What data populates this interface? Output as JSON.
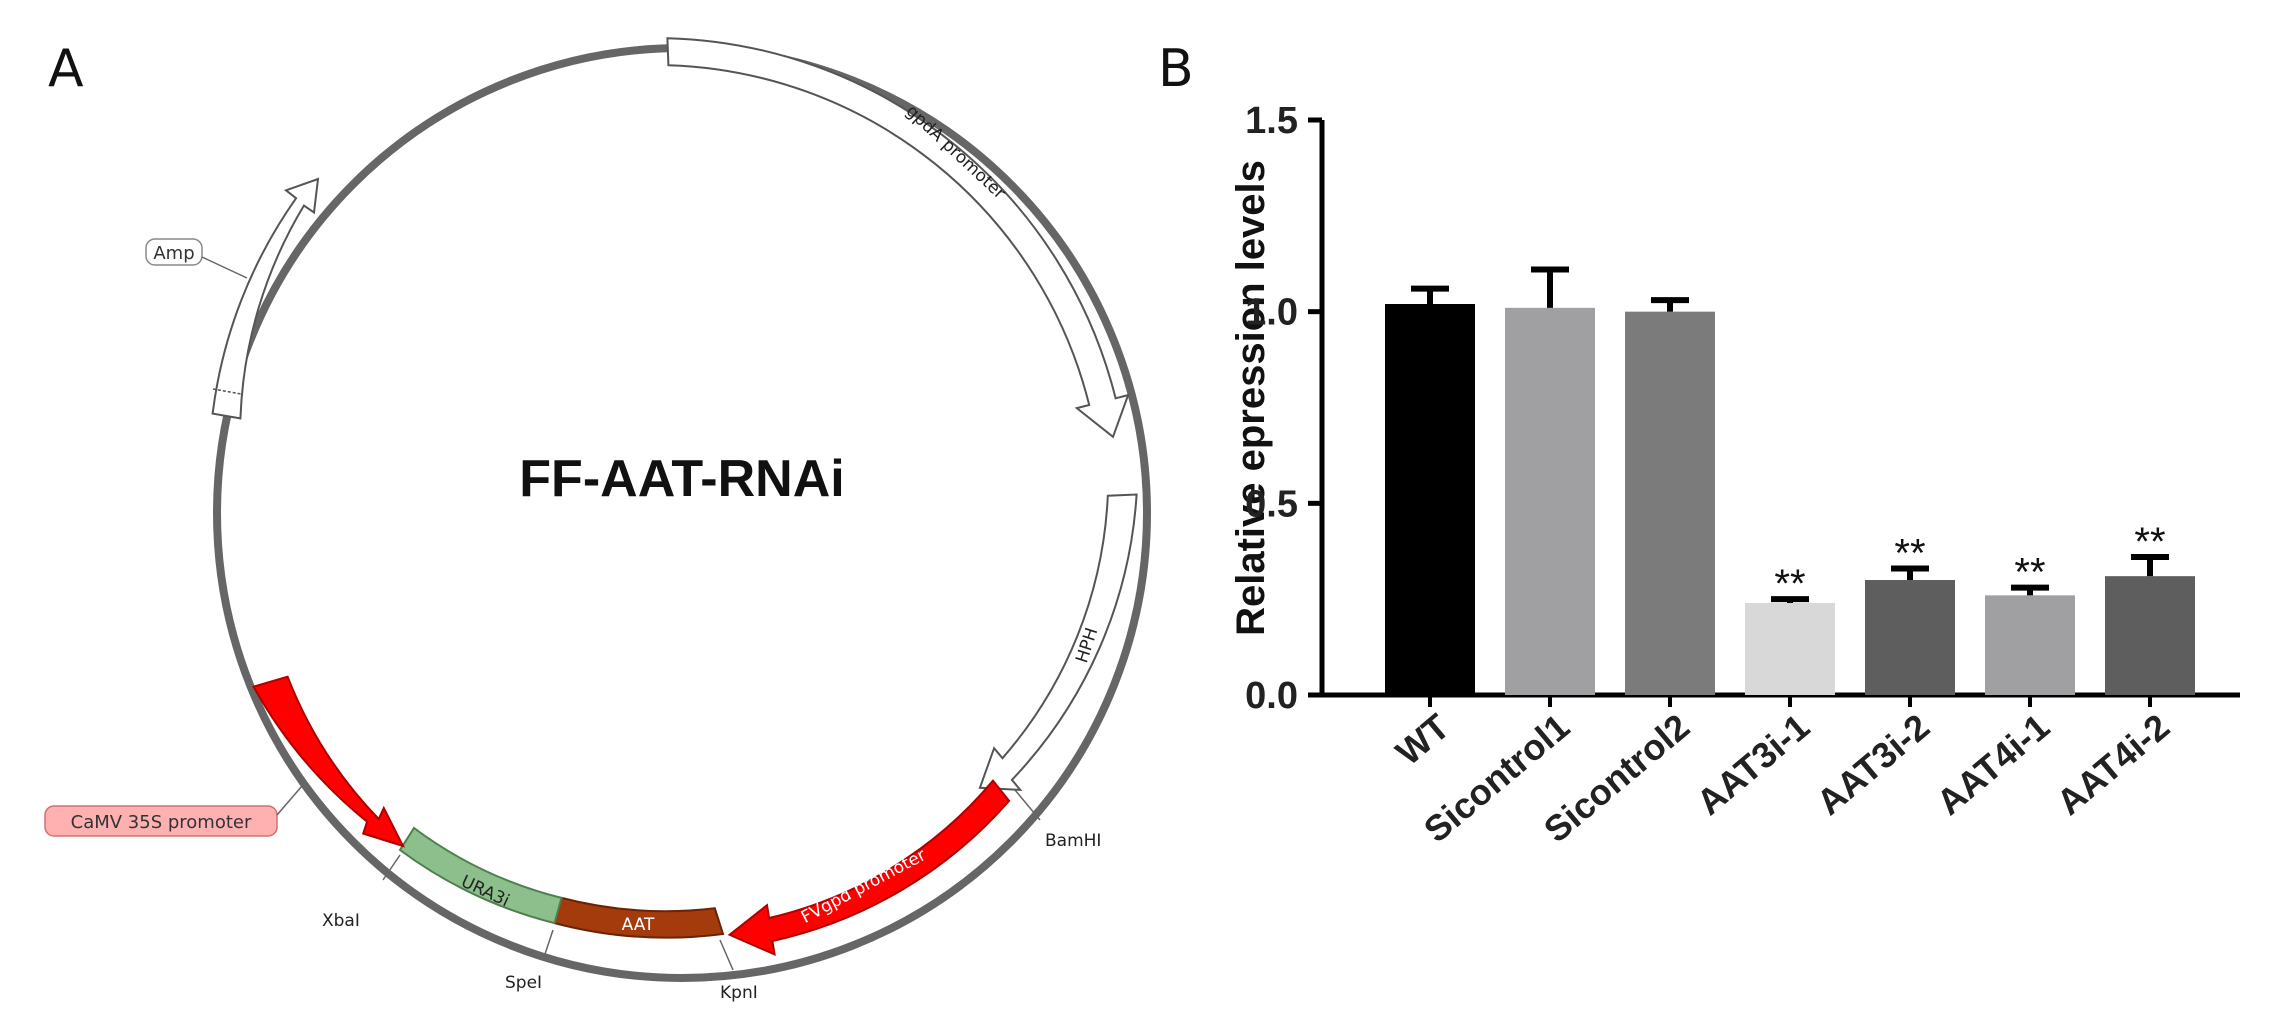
{
  "panels": {
    "a_letter": "A",
    "b_letter": "B"
  },
  "plasmid": {
    "name": "FF-AAT-RNAi",
    "features": [
      {
        "key": "gpda",
        "label": "gpdA promoter",
        "color": "#ffffff"
      },
      {
        "key": "hph",
        "label": "HPH",
        "color": "#ffffff"
      },
      {
        "key": "fvgpd",
        "label": "FVgpd promoter",
        "color": "#ff0000"
      },
      {
        "key": "aat",
        "label": "AAT",
        "color": "#a33b0d"
      },
      {
        "key": "ura3i",
        "label": "URA3i",
        "color": "#8cbf8c"
      },
      {
        "key": "camv",
        "label": "CaMV 35S promoter",
        "color": "#ff0000"
      },
      {
        "key": "amp",
        "label": "Amp",
        "color": "#ffffff"
      }
    ],
    "sites": {
      "bamhi": "BamHI",
      "kpni": "KpnI",
      "spei": "SpeI",
      "xbai": "XbaI"
    },
    "boxed_labels": {
      "amp": "Amp",
      "camv": "CaMV 35S promoter"
    },
    "backbone_color": "#666666"
  },
  "chart_data": {
    "type": "bar",
    "categories": [
      "WT",
      "Sicontrol1",
      "Sicontrol2",
      "AAT3i-1",
      "AAT3i-2",
      "AAT4i-1",
      "AAT4i-2"
    ],
    "values": [
      1.02,
      1.01,
      1.0,
      0.24,
      0.3,
      0.26,
      0.31
    ],
    "errors": [
      0.04,
      0.1,
      0.03,
      0.01,
      0.03,
      0.02,
      0.05
    ],
    "colors": [
      "#000000",
      "#a0a0a2",
      "#7b7b7b",
      "#d8d8d8",
      "#5e5e5e",
      "#a0a0a2",
      "#5e5e5e"
    ],
    "significance": [
      "",
      "",
      "",
      "**",
      "**",
      "**",
      "**"
    ],
    "ylabel": "Relative epression levels",
    "xlabel": "",
    "ylim": [
      0,
      1.5
    ],
    "yticks": [
      "0.0",
      "0.5",
      "1.0",
      "1.5"
    ],
    "ytick_values": [
      0,
      0.5,
      1.0,
      1.5
    ],
    "grid": false,
    "legend": "none"
  }
}
